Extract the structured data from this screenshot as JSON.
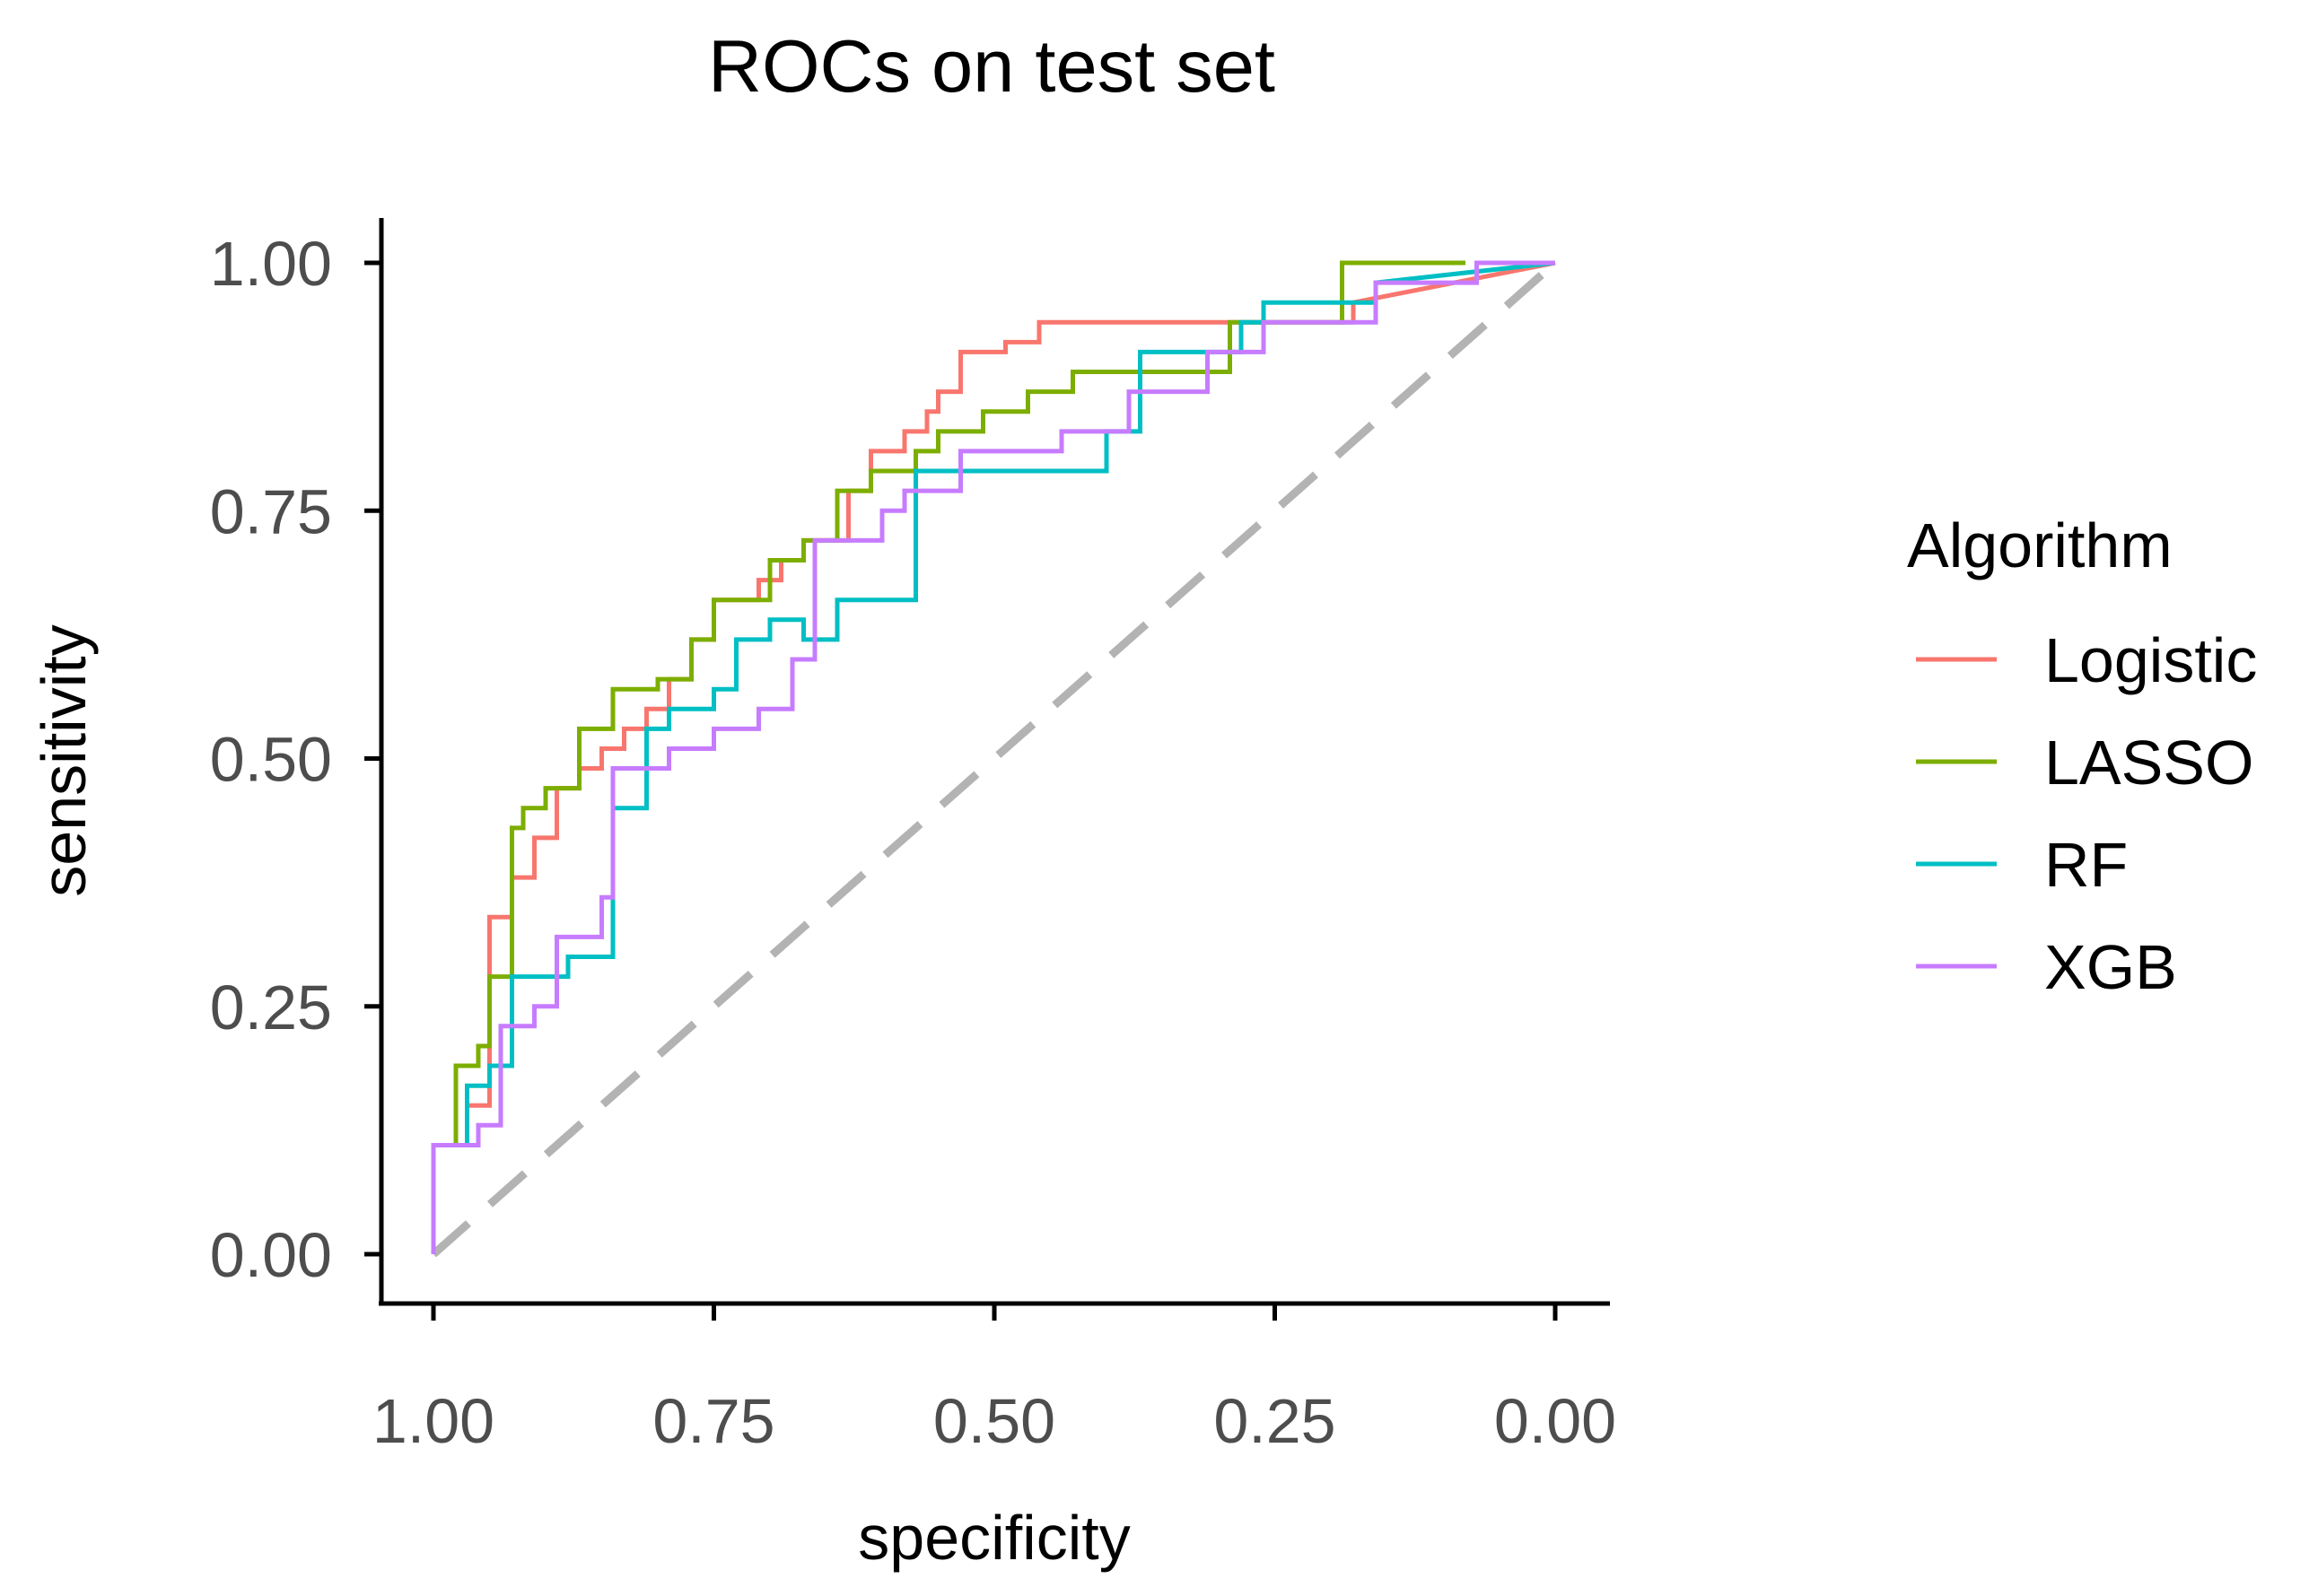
{
  "chart_data": {
    "type": "line",
    "title": "ROCs on test set",
    "xlabel": "specificity",
    "ylabel": "sensitivity",
    "xlim": [
      1.0,
      0.0
    ],
    "ylim": [
      0.0,
      1.0
    ],
    "x_ticks": [
      "1.00",
      "0.75",
      "0.50",
      "0.25",
      "0.00"
    ],
    "x_tick_values": [
      1.0,
      0.75,
      0.5,
      0.25,
      0.0
    ],
    "y_ticks": [
      "0.00",
      "0.25",
      "0.50",
      "0.75",
      "1.00"
    ],
    "y_tick_values": [
      0.0,
      0.25,
      0.5,
      0.75,
      1.0
    ],
    "grid": false,
    "reference_line": {
      "style": "dashed",
      "color": "#b3b3b3",
      "from": [
        1.0,
        0.0
      ],
      "to": [
        0.0,
        1.0
      ]
    },
    "legend": {
      "title": "Algorithm",
      "position": "right"
    },
    "series": [
      {
        "name": "Logistic",
        "color": "#F8766D",
        "specificity": [
          1.0,
          1.0,
          0.98,
          0.97,
          0.97,
          0.95,
          0.95,
          0.93,
          0.93,
          0.91,
          0.91,
          0.89,
          0.89,
          0.87,
          0.87,
          0.85,
          0.85,
          0.83,
          0.83,
          0.81,
          0.81,
          0.79,
          0.79,
          0.77,
          0.77,
          0.75,
          0.75,
          0.71,
          0.71,
          0.69,
          0.69,
          0.67,
          0.67,
          0.63,
          0.63,
          0.61,
          0.61,
          0.58,
          0.58,
          0.56,
          0.56,
          0.55,
          0.55,
          0.53,
          0.53,
          0.49,
          0.49,
          0.46,
          0.46,
          0.41,
          0.41,
          0.18,
          0.18,
          0.0
        ],
        "sensitivity": [
          0.0,
          0.11,
          0.11,
          0.11,
          0.15,
          0.15,
          0.34,
          0.34,
          0.38,
          0.38,
          0.42,
          0.42,
          0.47,
          0.47,
          0.49,
          0.49,
          0.51,
          0.51,
          0.53,
          0.53,
          0.55,
          0.55,
          0.58,
          0.58,
          0.62,
          0.62,
          0.66,
          0.66,
          0.68,
          0.68,
          0.7,
          0.7,
          0.72,
          0.72,
          0.77,
          0.77,
          0.81,
          0.81,
          0.83,
          0.83,
          0.85,
          0.85,
          0.87,
          0.87,
          0.91,
          0.91,
          0.92,
          0.92,
          0.94,
          0.94,
          0.94,
          0.94,
          0.96,
          1.0
        ]
      },
      {
        "name": "LASSO",
        "color": "#7CAE00",
        "specificity": [
          1.0,
          1.0,
          0.98,
          0.98,
          0.96,
          0.96,
          0.95,
          0.95,
          0.93,
          0.93,
          0.92,
          0.92,
          0.9,
          0.9,
          0.87,
          0.87,
          0.84,
          0.84,
          0.8,
          0.8,
          0.77,
          0.77,
          0.75,
          0.75,
          0.7,
          0.7,
          0.67,
          0.67,
          0.64,
          0.64,
          0.61,
          0.61,
          0.57,
          0.57,
          0.55,
          0.55,
          0.51,
          0.51,
          0.47,
          0.47,
          0.43,
          0.43,
          0.29,
          0.29,
          0.19,
          0.19,
          0.08
        ],
        "sensitivity": [
          0.0,
          0.11,
          0.11,
          0.19,
          0.19,
          0.21,
          0.21,
          0.28,
          0.28,
          0.43,
          0.43,
          0.45,
          0.45,
          0.47,
          0.47,
          0.53,
          0.53,
          0.57,
          0.57,
          0.58,
          0.58,
          0.62,
          0.62,
          0.66,
          0.66,
          0.7,
          0.7,
          0.72,
          0.72,
          0.77,
          0.77,
          0.79,
          0.79,
          0.81,
          0.81,
          0.83,
          0.83,
          0.85,
          0.85,
          0.87,
          0.87,
          0.89,
          0.89,
          0.94,
          0.94,
          1.0,
          1.0
        ]
      },
      {
        "name": "RF",
        "color": "#00BFC4",
        "specificity": [
          1.0,
          1.0,
          0.97,
          0.97,
          0.95,
          0.95,
          0.93,
          0.93,
          0.88,
          0.88,
          0.84,
          0.84,
          0.81,
          0.81,
          0.79,
          0.79,
          0.75,
          0.75,
          0.73,
          0.73,
          0.7,
          0.7,
          0.67,
          0.67,
          0.64,
          0.64,
          0.61,
          0.61,
          0.57,
          0.57,
          0.4,
          0.4,
          0.37,
          0.37,
          0.28,
          0.28,
          0.26,
          0.26,
          0.16,
          0.16,
          0.0
        ],
        "sensitivity": [
          0.0,
          0.11,
          0.11,
          0.17,
          0.17,
          0.19,
          0.19,
          0.28,
          0.28,
          0.3,
          0.3,
          0.45,
          0.45,
          0.53,
          0.53,
          0.55,
          0.55,
          0.57,
          0.57,
          0.62,
          0.62,
          0.64,
          0.64,
          0.62,
          0.62,
          0.66,
          0.66,
          0.66,
          0.66,
          0.79,
          0.79,
          0.83,
          0.83,
          0.91,
          0.91,
          0.94,
          0.94,
          0.96,
          0.96,
          0.98,
          1.0
        ]
      },
      {
        "name": "XGB",
        "color": "#C77CFF",
        "specificity": [
          1.0,
          1.0,
          0.96,
          0.96,
          0.94,
          0.94,
          0.91,
          0.91,
          0.89,
          0.89,
          0.85,
          0.85,
          0.84,
          0.84,
          0.79,
          0.79,
          0.75,
          0.75,
          0.71,
          0.71,
          0.68,
          0.68,
          0.66,
          0.66,
          0.6,
          0.6,
          0.58,
          0.58,
          0.53,
          0.53,
          0.44,
          0.44,
          0.38,
          0.38,
          0.31,
          0.31,
          0.26,
          0.26,
          0.16,
          0.16,
          0.07,
          0.07,
          0.0
        ],
        "sensitivity": [
          0.0,
          0.11,
          0.11,
          0.13,
          0.13,
          0.23,
          0.23,
          0.25,
          0.25,
          0.32,
          0.32,
          0.36,
          0.36,
          0.49,
          0.49,
          0.51,
          0.51,
          0.53,
          0.53,
          0.55,
          0.55,
          0.6,
          0.6,
          0.72,
          0.72,
          0.75,
          0.75,
          0.77,
          0.77,
          0.81,
          0.81,
          0.83,
          0.83,
          0.87,
          0.87,
          0.91,
          0.91,
          0.94,
          0.94,
          0.98,
          0.98,
          1.0,
          1.0
        ]
      }
    ]
  }
}
